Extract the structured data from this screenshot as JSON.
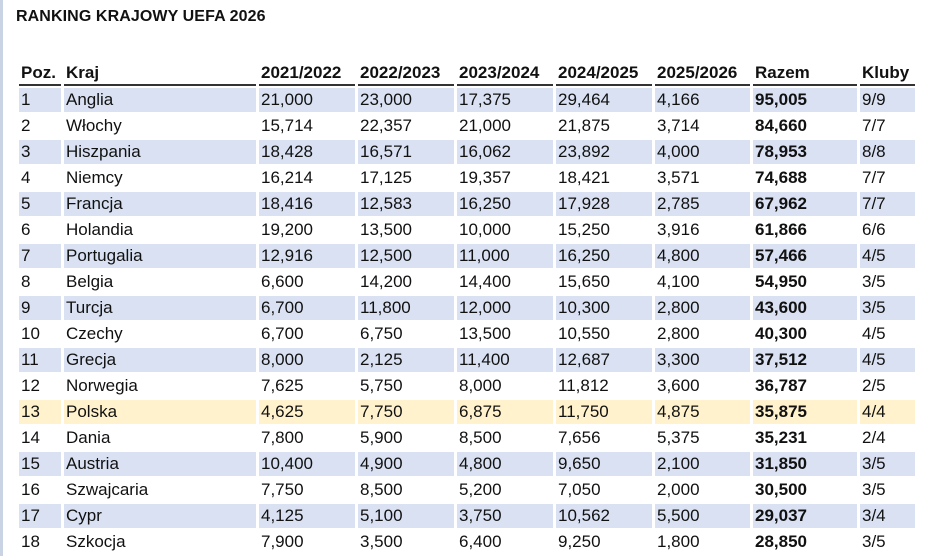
{
  "title": "RANKING KRAJOWY UEFA 2026",
  "colors": {
    "row_stripe": "#d9e1f2",
    "highlight_row": "#fff2cc"
  },
  "highlight_country": "Polska",
  "columns": [
    "Poz.",
    "Kraj",
    "2021/2022",
    "2022/2023",
    "2023/2024",
    "2024/2025",
    "2025/2026",
    "Razem",
    "Kluby"
  ],
  "rows": [
    [
      "1",
      "Anglia",
      "21,000",
      "23,000",
      "17,375",
      "29,464",
      "4,166",
      "95,005",
      "9/9"
    ],
    [
      "2",
      "Włochy",
      "15,714",
      "22,357",
      "21,000",
      "21,875",
      "3,714",
      "84,660",
      "7/7"
    ],
    [
      "3",
      "Hiszpania",
      "18,428",
      "16,571",
      "16,062",
      "23,892",
      "4,000",
      "78,953",
      "8/8"
    ],
    [
      "4",
      "Niemcy",
      "16,214",
      "17,125",
      "19,357",
      "18,421",
      "3,571",
      "74,688",
      "7/7"
    ],
    [
      "5",
      "Francja",
      "18,416",
      "12,583",
      "16,250",
      "17,928",
      "2,785",
      "67,962",
      "7/7"
    ],
    [
      "6",
      "Holandia",
      "19,200",
      "13,500",
      "10,000",
      "15,250",
      "3,916",
      "61,866",
      "6/6"
    ],
    [
      "7",
      "Portugalia",
      "12,916",
      "12,500",
      "11,000",
      "16,250",
      "4,800",
      "57,466",
      "4/5"
    ],
    [
      "8",
      "Belgia",
      "6,600",
      "14,200",
      "14,400",
      "15,650",
      "4,100",
      "54,950",
      "3/5"
    ],
    [
      "9",
      "Turcja",
      "6,700",
      "11,800",
      "12,000",
      "10,300",
      "2,800",
      "43,600",
      "3/5"
    ],
    [
      "10",
      "Czechy",
      "6,700",
      "6,750",
      "13,500",
      "10,550",
      "2,800",
      "40,300",
      "4/5"
    ],
    [
      "11",
      "Grecja",
      "8,000",
      "2,125",
      "11,400",
      "12,687",
      "3,300",
      "37,512",
      "4/5"
    ],
    [
      "12",
      "Norwegia",
      "7,625",
      "5,750",
      "8,000",
      "11,812",
      "3,600",
      "36,787",
      "2/5"
    ],
    [
      "13",
      "Polska",
      "4,625",
      "7,750",
      "6,875",
      "11,750",
      "4,875",
      "35,875",
      "4/4"
    ],
    [
      "14",
      "Dania",
      "7,800",
      "5,900",
      "8,500",
      "7,656",
      "5,375",
      "35,231",
      "2/4"
    ],
    [
      "15",
      "Austria",
      "10,400",
      "4,900",
      "4,800",
      "9,650",
      "2,100",
      "31,850",
      "3/5"
    ],
    [
      "16",
      "Szwajcaria",
      "7,750",
      "8,500",
      "5,200",
      "7,050",
      "2,000",
      "30,500",
      "3/5"
    ],
    [
      "17",
      "Cypr",
      "4,125",
      "5,100",
      "3,750",
      "10,562",
      "5,500",
      "29,037",
      "3/4"
    ],
    [
      "18",
      "Szkocja",
      "7,900",
      "3,500",
      "6,400",
      "9,250",
      "1,800",
      "28,850",
      "3/5"
    ]
  ]
}
